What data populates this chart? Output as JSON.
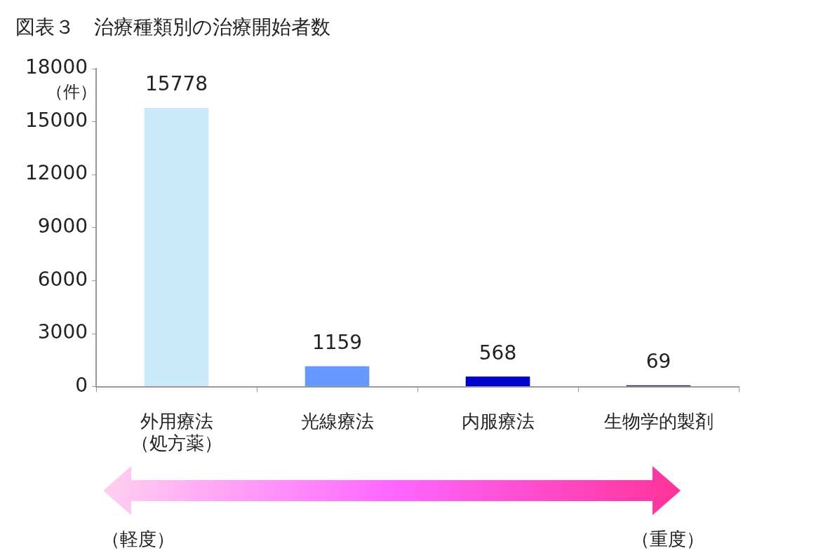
{
  "chart_data": {
    "type": "bar",
    "title": "図表３　治療種類別の治療開始者数",
    "ylabel": "（件）",
    "categories": [
      "外用療法（処方薬）",
      "光線療法",
      "内服療法",
      "生物学的製剤"
    ],
    "values": [
      15778,
      1159,
      568,
      69
    ],
    "colors": [
      "#cce9fc",
      "#6699ff",
      "#0000cc",
      "#222266"
    ],
    "ylim": [
      0,
      18000
    ],
    "yticks": [
      0,
      3000,
      6000,
      9000,
      12000,
      15000,
      18000
    ],
    "grid": false,
    "legend": false,
    "data_labels": true,
    "annotations": [
      "（軽度）",
      "（重度）"
    ]
  }
}
